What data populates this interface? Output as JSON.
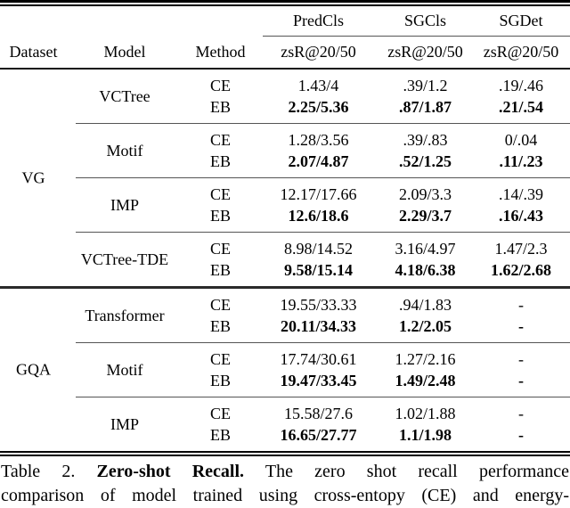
{
  "table": {
    "headers": {
      "dataset": "Dataset",
      "model": "Model",
      "method": "Method"
    },
    "metrics": [
      {
        "name": "PredCls",
        "sub": "zsR@20/50"
      },
      {
        "name": "SGCls",
        "sub": "zsR@20/50"
      },
      {
        "name": "SGDet",
        "sub": "zsR@20/50"
      }
    ],
    "groups": [
      {
        "dataset": "VG",
        "models": [
          {
            "model": "VCTree",
            "rows": [
              {
                "method": "CE",
                "predcls": "1.43/4",
                "sgcls": ".39/1.2",
                "sgdet": ".19/.46"
              },
              {
                "method": "EB",
                "predcls": "2.25/5.36",
                "sgcls": ".87/1.87",
                "sgdet": ".21/.54"
              }
            ]
          },
          {
            "model": "Motif",
            "rows": [
              {
                "method": "CE",
                "predcls": "1.28/3.56",
                "sgcls": ".39/.83",
                "sgdet": "0/.04"
              },
              {
                "method": "EB",
                "predcls": "2.07/4.87",
                "sgcls": ".52/1.25",
                "sgdet": ".11/.23"
              }
            ]
          },
          {
            "model": "IMP",
            "rows": [
              {
                "method": "CE",
                "predcls": "12.17/17.66",
                "sgcls": "2.09/3.3",
                "sgdet": ".14/.39"
              },
              {
                "method": "EB",
                "predcls": "12.6/18.6",
                "sgcls": "2.29/3.7",
                "sgdet": ".16/.43"
              }
            ]
          },
          {
            "model": "VCTree-TDE",
            "rows": [
              {
                "method": "CE",
                "predcls": "8.98/14.52",
                "sgcls": "3.16/4.97",
                "sgdet": "1.47/2.3"
              },
              {
                "method": "EB",
                "predcls": "9.58/15.14",
                "sgcls": "4.18/6.38",
                "sgdet": "1.62/2.68"
              }
            ]
          }
        ]
      },
      {
        "dataset": "GQA",
        "models": [
          {
            "model": "Transformer",
            "rows": [
              {
                "method": "CE",
                "predcls": "19.55/33.33",
                "sgcls": ".94/1.83",
                "sgdet": "-"
              },
              {
                "method": "EB",
                "predcls": "20.11/34.33",
                "sgcls": "1.2/2.05",
                "sgdet": "-"
              }
            ]
          },
          {
            "model": "Motif",
            "rows": [
              {
                "method": "CE",
                "predcls": "17.74/30.61",
                "sgcls": "1.27/2.16",
                "sgdet": "-"
              },
              {
                "method": "EB",
                "predcls": "19.47/33.45",
                "sgcls": "1.49/2.48",
                "sgdet": "-"
              }
            ]
          },
          {
            "model": "IMP",
            "rows": [
              {
                "method": "CE",
                "predcls": "15.58/27.6",
                "sgcls": "1.02/1.88",
                "sgdet": "-"
              },
              {
                "method": "EB",
                "predcls": "16.65/27.77",
                "sgcls": "1.1/1.98",
                "sgdet": "-"
              }
            ]
          }
        ]
      }
    ]
  },
  "caption": {
    "line1_prefix": "Table 2. ",
    "line1_bold": "Zero-shot Recall.",
    "line1_rest": " The zero shot recall performance",
    "line2": "comparison of model trained using cross-entopy (CE) and energy-"
  }
}
